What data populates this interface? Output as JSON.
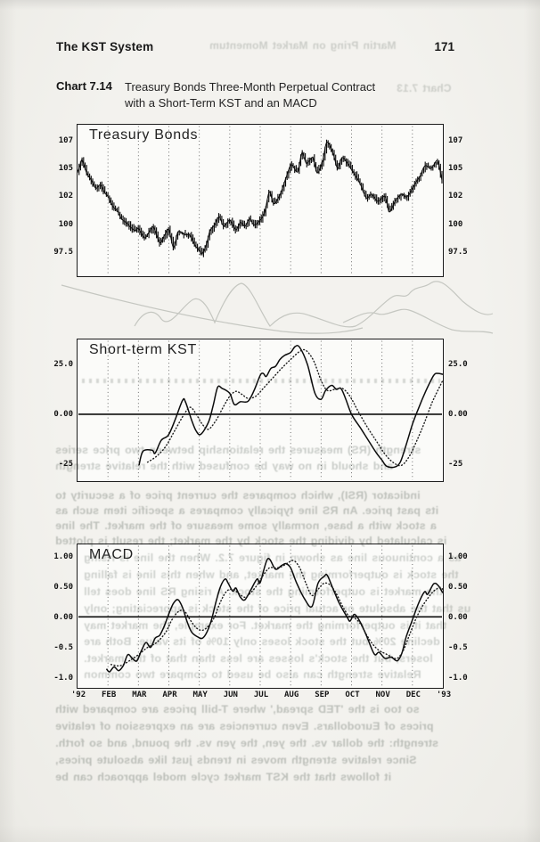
{
  "page": {
    "header_left": "The KST System",
    "page_number": "171",
    "caption_label": "Chart 7.14",
    "caption_line1": "Treasury Bonds Three-Month Perpetual Contract",
    "caption_line2": "with a Short-Term KST and an MACD"
  },
  "colors": {
    "page_bg": "#f1f0ec",
    "chart_bg": "#fbfbf9",
    "ink": "#0c0c0c",
    "grid": "#3a3a3a",
    "ghost": "#99a09b"
  },
  "months_axis": [
    "'92",
    "FEB",
    "MAR",
    "APR",
    "MAY",
    "JUN",
    "JUL",
    "AUG",
    "SEP",
    "OCT",
    "NOV",
    "DEC",
    "'93"
  ],
  "chart_data": [
    {
      "type": "line",
      "slug": "treasury-bonds",
      "title": "Treasury Bonds",
      "x_unit": "months from Jan '92 (0) to Jan '93 (12)",
      "y_ticks": [
        "107",
        "105",
        "102",
        "100",
        "97.5"
      ],
      "y_tick_values": [
        107,
        105,
        102,
        100,
        97.5
      ],
      "ylim": [
        95.46,
        108.28
      ],
      "grid": "vertical-dotted-monthly",
      "series": [
        {
          "name": "price-high-low-bars",
          "style": "hl-bars",
          "x": [
            0.0,
            0.08,
            0.15,
            0.3,
            0.45,
            0.6,
            0.75,
            0.9,
            1.0,
            1.15,
            1.3,
            1.45,
            1.6,
            1.75,
            1.9,
            2.0,
            2.2,
            2.35,
            2.5,
            2.7,
            2.85,
            3.0,
            3.15,
            3.3,
            3.5,
            3.7,
            3.85,
            3.95,
            4.1,
            4.25,
            4.35,
            4.5,
            4.65,
            4.8,
            5.0,
            5.2,
            5.35,
            5.5,
            5.65,
            5.8,
            6.0,
            6.15,
            6.3,
            6.44,
            6.64,
            6.85,
            7.02,
            7.23,
            7.37,
            7.52,
            7.73,
            7.87,
            8.05,
            8.19,
            8.4,
            8.54,
            8.69,
            8.9,
            9.07,
            9.28,
            9.48,
            9.66,
            9.86,
            10.1,
            10.24,
            10.45,
            10.65,
            10.83,
            11.09,
            11.24,
            11.41,
            11.62,
            11.82,
            11.97
          ],
          "y": [
            104.3,
            104.8,
            105.3,
            104.2,
            103.6,
            102.9,
            103.2,
            102.5,
            102.2,
            101.4,
            101.0,
            100.3,
            100.0,
            99.6,
            99.3,
            99.5,
            98.7,
            99.2,
            99.6,
            98.3,
            98.9,
            99.4,
            97.9,
            99.2,
            99.0,
            98.9,
            98.1,
            97.8,
            97.4,
            98.3,
            99.3,
            99.8,
            100.5,
            99.7,
            100.2,
            99.4,
            100.0,
            99.7,
            100.3,
            99.8,
            100.2,
            100.9,
            102.6,
            101.6,
            102.3,
            103.8,
            104.9,
            104.3,
            105.9,
            105.0,
            105.5,
            104.2,
            105.2,
            106.8,
            105.8,
            104.6,
            105.5,
            104.9,
            104.2,
            103.3,
            102.1,
            102.4,
            101.8,
            102.2,
            100.9,
            101.9,
            102.4,
            102.2,
            103.3,
            103.9,
            104.8,
            104.6,
            105.2,
            103.6
          ]
        }
      ]
    },
    {
      "type": "line",
      "slug": "short-term-kst",
      "title": "Short-term KST",
      "y_ticks": [
        "25.0",
        "0.00",
        "-25"
      ],
      "y_tick_values": [
        25,
        0,
        -25
      ],
      "ylim": [
        -33.5,
        37.5
      ],
      "zero_line": true,
      "grid": "vertical-dotted-monthly",
      "series": [
        {
          "name": "kst",
          "style": "solid",
          "x": [
            2.02,
            2.15,
            2.45,
            2.55,
            2.75,
            2.98,
            3.2,
            3.45,
            3.55,
            3.75,
            3.9,
            4.05,
            4.3,
            4.45,
            4.6,
            4.75,
            5.0,
            5.15,
            5.35,
            5.6,
            5.8,
            6.0,
            6.1,
            6.2,
            6.35,
            6.5,
            6.65,
            6.8,
            7.0,
            7.15,
            7.3,
            7.55,
            7.8,
            8.0,
            8.15,
            8.35,
            8.5,
            8.65,
            8.8,
            9.0,
            9.3,
            9.55,
            9.8,
            10.0,
            10.15,
            10.4,
            10.6,
            10.8,
            11.0,
            11.2,
            11.45,
            11.7,
            11.85,
            12.0
          ],
          "y": [
            -25.5,
            -18.5,
            -18.0,
            -19.5,
            -13.0,
            -10.5,
            -3.0,
            7.0,
            6.0,
            -3.0,
            -8.5,
            -10.0,
            -4.0,
            4.0,
            13.5,
            13.0,
            10.5,
            4.9,
            6.3,
            6.5,
            12.0,
            19.5,
            20.5,
            19.0,
            23.0,
            24.0,
            27.5,
            29.5,
            31.0,
            34.0,
            33.5,
            25.0,
            10.5,
            7.5,
            12.0,
            14.5,
            12.5,
            13.0,
            8.0,
            0.0,
            -7.0,
            -13.0,
            -19.0,
            -23.0,
            -26.0,
            -26.5,
            -24.0,
            -15.0,
            -5.0,
            3.0,
            12.0,
            19.5,
            20.5,
            20.0
          ]
        },
        {
          "name": "kst-signal",
          "style": "dotted",
          "x": [
            2.3,
            2.6,
            2.9,
            3.2,
            3.5,
            3.7,
            3.9,
            4.1,
            4.3,
            4.55,
            4.8,
            5.0,
            5.2,
            5.4,
            5.6,
            5.85,
            6.1,
            6.4,
            6.7,
            7.0,
            7.3,
            7.5,
            7.75,
            8.0,
            8.2,
            8.45,
            8.7,
            8.95,
            9.2,
            9.5,
            9.8,
            10.1,
            10.4,
            10.65,
            10.9,
            11.15,
            11.4,
            11.65,
            11.9,
            12.0
          ],
          "y": [
            -24,
            -21,
            -16,
            -8,
            0,
            3.5,
            0,
            -5,
            -7.5,
            -3,
            4,
            9,
            11.5,
            10,
            8,
            9,
            13,
            18,
            23,
            27.5,
            31.5,
            32,
            27,
            17,
            12,
            12.5,
            13,
            9,
            2,
            -6,
            -13,
            -20,
            -24.5,
            -25.5,
            -21,
            -13,
            -4,
            6,
            14,
            17
          ]
        }
      ]
    },
    {
      "type": "line",
      "slug": "macd",
      "title": "MACD",
      "y_ticks": [
        "1.00",
        "0.50",
        "0.00",
        "-0.5",
        "-1.0"
      ],
      "y_tick_values": [
        1.0,
        0.5,
        0.0,
        -0.5,
        -1.0
      ],
      "ylim": [
        -1.162,
        1.185
      ],
      "zero_line": true,
      "grid": "vertical-dotted-monthly",
      "x_tick_labels": [
        "'92",
        "FEB",
        "MAR",
        "APR",
        "MAY",
        "JUN",
        "JUL",
        "AUG",
        "SEP",
        "OCT",
        "NOV",
        "DEC",
        "'93"
      ],
      "series": [
        {
          "name": "macd",
          "style": "solid",
          "x": [
            0.95,
            1.05,
            1.2,
            1.35,
            1.5,
            1.65,
            1.8,
            1.95,
            2.1,
            2.25,
            2.4,
            2.55,
            2.7,
            2.85,
            3.0,
            3.15,
            3.3,
            3.45,
            3.6,
            3.75,
            3.95,
            4.1,
            4.25,
            4.4,
            4.55,
            4.7,
            4.85,
            4.95,
            5.1,
            5.2,
            5.35,
            5.5,
            5.7,
            5.9,
            6.0,
            6.25,
            6.5,
            6.7,
            6.85,
            7.0,
            7.2,
            7.45,
            7.7,
            7.9,
            8.1,
            8.2,
            8.4,
            8.6,
            8.85,
            8.95,
            9.1,
            9.3,
            9.5,
            9.75,
            9.9,
            10.1,
            10.3,
            10.5,
            10.65,
            10.8,
            11.0,
            11.2,
            11.4,
            11.5,
            11.7,
            11.85,
            12.0
          ],
          "y": [
            -0.85,
            -0.9,
            -0.82,
            -0.88,
            -0.8,
            -0.62,
            -0.68,
            -0.72,
            -0.55,
            -0.42,
            -0.5,
            -0.35,
            -0.3,
            -0.15,
            0.05,
            0.22,
            0.28,
            0.15,
            -0.08,
            -0.25,
            -0.33,
            -0.35,
            -0.25,
            -0.05,
            0.25,
            0.5,
            0.62,
            0.55,
            0.42,
            0.47,
            0.32,
            0.28,
            0.45,
            0.62,
            0.56,
            0.95,
            0.78,
            0.84,
            0.87,
            0.8,
            0.55,
            0.3,
            0.17,
            0.55,
            0.66,
            0.68,
            0.45,
            0.22,
            0.0,
            -0.07,
            0.04,
            -0.1,
            -0.32,
            -0.61,
            -0.58,
            -0.68,
            -0.66,
            -0.72,
            -0.6,
            -0.32,
            -0.05,
            0.22,
            0.41,
            0.37,
            0.54,
            0.51,
            0.39
          ]
        },
        {
          "name": "macd-signal",
          "style": "dotted",
          "x": [
            1.1,
            1.4,
            1.7,
            2.0,
            2.3,
            2.6,
            2.9,
            3.1,
            3.3,
            3.5,
            3.7,
            3.9,
            4.1,
            4.3,
            4.5,
            4.7,
            4.9,
            5.1,
            5.3,
            5.5,
            5.7,
            5.9,
            6.1,
            6.3,
            6.5,
            6.7,
            6.9,
            7.1,
            7.3,
            7.5,
            7.7,
            7.9,
            8.1,
            8.3,
            8.5,
            8.7,
            8.9,
            9.1,
            9.3,
            9.5,
            9.7,
            9.9,
            10.1,
            10.3,
            10.5,
            10.7,
            10.9,
            11.1,
            11.3,
            11.5,
            11.7,
            11.9,
            12.0
          ],
          "y": [
            -0.78,
            -0.8,
            -0.72,
            -0.62,
            -0.5,
            -0.42,
            -0.25,
            -0.05,
            0.08,
            0.1,
            -0.05,
            -0.18,
            -0.22,
            -0.15,
            0.0,
            0.25,
            0.42,
            0.45,
            0.38,
            0.32,
            0.4,
            0.52,
            0.68,
            0.8,
            0.8,
            0.82,
            0.88,
            0.92,
            0.8,
            0.55,
            0.35,
            0.45,
            0.55,
            0.52,
            0.38,
            0.18,
            0.02,
            -0.02,
            -0.12,
            -0.3,
            -0.45,
            -0.55,
            -0.6,
            -0.65,
            -0.68,
            -0.55,
            -0.3,
            -0.05,
            0.15,
            0.3,
            0.42,
            0.48,
            0.45
          ]
        }
      ]
    }
  ],
  "bleedthrough": {
    "top": [
      "Martin Pring on Market Momentum",
      "Chart 7.13"
    ],
    "mid": [
      "strength (RS) measures the relationship between two price series",
      "and should in no way be confused with the relative strength",
      "indicator (RSI), which compares the current price of a security to",
      "its past price. An RS line typically compares a specific item such as",
      "a stock with a base, normally some measure of the market. The line",
      "is calculated by dividing the stock by the market; the result is plotted"
    ],
    "macd": [
      "as a continuous line as shown in figure 7.2. When the line is rising",
      "the stock is outperforming the market, and when this line is falling",
      "the market is outperforming the stock. A rising RS line does tell",
      "us that the absolute or actual price of the stock is appreciating; only",
      "that it is outperforming the market. For example, the market may",
      "decline 20% but the stock loses only 10% of its value. Both are",
      "losers, but the stock's losses are less than that of the market.",
      "Relative strength can also be used to compare two common"
    ],
    "bottom": [
      "so too is the 'TED spread,' where T-bill prices are compared with",
      "prices of Eurodollars. Even currencies are an expression of relative",
      "strength: the dollar vs. the yen, the yen vs. the pound, and so forth.",
      "Since relative strength moves in trends just like absolute prices,",
      "it follows that the KST market cycle model approach can be"
    ]
  }
}
